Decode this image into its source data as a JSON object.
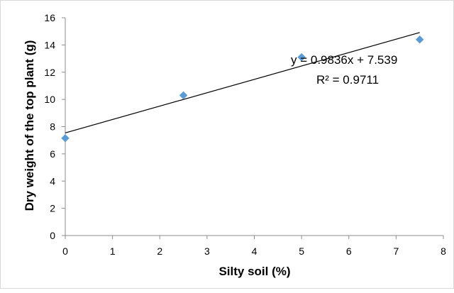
{
  "chart_data": {
    "type": "scatter",
    "xlabel": "Silty soil (%)",
    "ylabel": "Dry weight of the top plant (g)",
    "xlim": [
      0,
      8
    ],
    "ylim": [
      0,
      16
    ],
    "xticks": [
      "0",
      "1",
      "2",
      "3",
      "4",
      "5",
      "6",
      "7",
      "8"
    ],
    "yticks": [
      "0",
      "2",
      "4",
      "6",
      "8",
      "10",
      "12",
      "14",
      "16"
    ],
    "grid": false,
    "legend": "none",
    "marker_color": "#5b9bd5",
    "series": [
      {
        "marker": "diamond",
        "points": [
          {
            "x": 0,
            "y": 7.15
          },
          {
            "x": 2.5,
            "y": 10.3
          },
          {
            "x": 5,
            "y": 13.1
          },
          {
            "x": 7.5,
            "y": 14.4
          }
        ]
      }
    ],
    "trendline": {
      "type": "linear",
      "slope": 0.9836,
      "intercept": 7.539,
      "x_range": [
        0,
        7.5
      ],
      "equation_label": "y = 0.9836x + 7.539",
      "r2_label": "R² = 0.9711"
    }
  }
}
